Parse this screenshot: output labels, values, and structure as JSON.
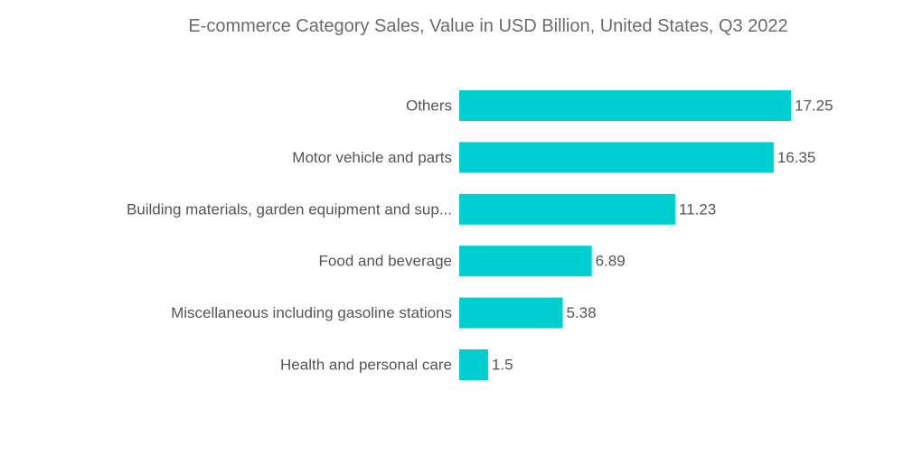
{
  "chart_data": {
    "type": "bar",
    "orientation": "horizontal",
    "title": "E-commerce Category Sales, Value in USD Billion, United States, Q3 2022",
    "xlabel": "",
    "ylabel": "",
    "xlim": [
      0,
      17.25
    ],
    "grid": false,
    "legend": "none",
    "categories": [
      "Others",
      "Motor vehicle and parts",
      "Building materials, garden equipment and sup...",
      "Food and beverage",
      "Miscellaneous including gasoline stations",
      "Health and personal care"
    ],
    "values": [
      17.25,
      16.35,
      11.23,
      6.89,
      5.38,
      1.5
    ],
    "value_labels": [
      "17.25",
      "16.35",
      "11.23",
      "6.89",
      "5.38",
      "1.5"
    ],
    "colors": {
      "bar": "#00CED1",
      "label_text": "#555555",
      "title_text": "#6b6b6b"
    }
  }
}
